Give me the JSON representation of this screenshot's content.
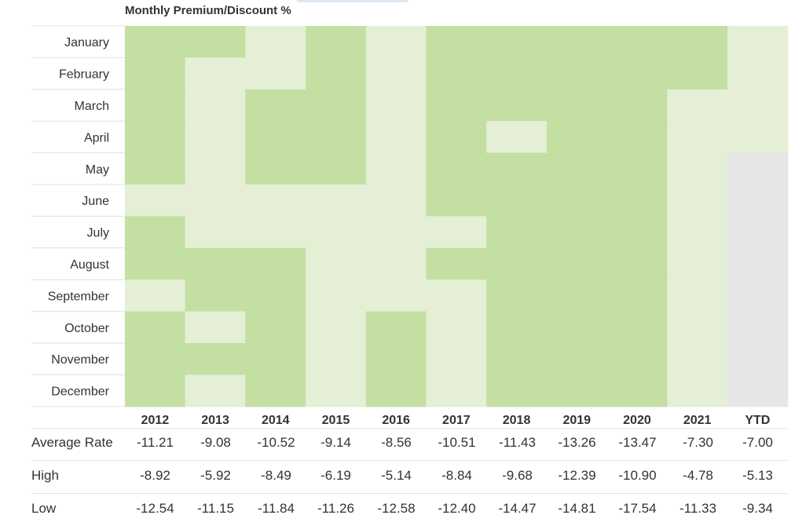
{
  "title": "Monthly Premium/Discount %",
  "colors": {
    "dark": "#c4dfa2",
    "light": "#e4efd6",
    "empty": "#e6e6e6",
    "grid": "#e0e0e0"
  },
  "chart_data": {
    "type": "heatmap",
    "title": "Monthly Premium/Discount %",
    "x": [
      "2012",
      "2013",
      "2014",
      "2015",
      "2016",
      "2017",
      "2018",
      "2019",
      "2020",
      "2021",
      "YTD"
    ],
    "y": [
      "January",
      "February",
      "March",
      "April",
      "May",
      "June",
      "July",
      "August",
      "September",
      "October",
      "November",
      "December"
    ],
    "levels_legend": "1 = darker green, 0 = lighter green, null = no data",
    "levels": [
      [
        1,
        1,
        0,
        1,
        0,
        1,
        1,
        1,
        1,
        1,
        0
      ],
      [
        1,
        0,
        0,
        1,
        0,
        1,
        1,
        1,
        1,
        1,
        0
      ],
      [
        1,
        0,
        1,
        1,
        0,
        1,
        1,
        1,
        1,
        0,
        0
      ],
      [
        1,
        0,
        1,
        1,
        0,
        1,
        0,
        1,
        1,
        0,
        0
      ],
      [
        1,
        0,
        1,
        1,
        0,
        1,
        1,
        1,
        1,
        0,
        null
      ],
      [
        0,
        0,
        0,
        0,
        0,
        1,
        1,
        1,
        1,
        0,
        null
      ],
      [
        1,
        0,
        0,
        0,
        0,
        0,
        1,
        1,
        1,
        0,
        null
      ],
      [
        1,
        1,
        1,
        0,
        0,
        1,
        1,
        1,
        1,
        0,
        null
      ],
      [
        0,
        1,
        1,
        0,
        0,
        0,
        1,
        1,
        1,
        0,
        null
      ],
      [
        1,
        0,
        1,
        0,
        1,
        0,
        1,
        1,
        1,
        0,
        null
      ],
      [
        1,
        1,
        1,
        0,
        1,
        0,
        1,
        1,
        1,
        0,
        null
      ],
      [
        1,
        0,
        1,
        0,
        1,
        0,
        1,
        1,
        1,
        0,
        null
      ]
    ]
  },
  "stats": [
    {
      "label": "Average Rate",
      "values": [
        "-11.21",
        "-9.08",
        "-10.52",
        "-9.14",
        "-8.56",
        "-10.51",
        "-11.43",
        "-13.26",
        "-13.47",
        "-7.30",
        "-7.00"
      ]
    },
    {
      "label": "High",
      "values": [
        "-8.92",
        "-5.92",
        "-8.49",
        "-6.19",
        "-5.14",
        "-8.84",
        "-9.68",
        "-12.39",
        "-10.90",
        "-4.78",
        "-5.13"
      ]
    },
    {
      "label": "Low",
      "values": [
        "-12.54",
        "-11.15",
        "-11.84",
        "-11.26",
        "-12.58",
        "-12.40",
        "-14.47",
        "-14.81",
        "-17.54",
        "-11.33",
        "-9.34"
      ]
    }
  ]
}
